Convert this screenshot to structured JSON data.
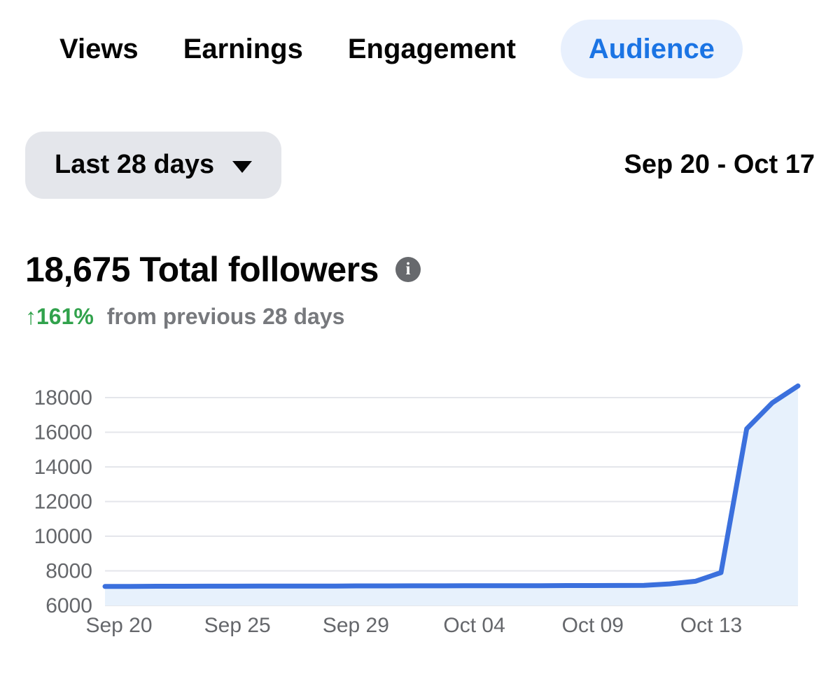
{
  "tabs": [
    {
      "label": "Views",
      "active": false
    },
    {
      "label": "Earnings",
      "active": false
    },
    {
      "label": "Engagement",
      "active": false
    },
    {
      "label": "Audience",
      "active": true
    }
  ],
  "filters": {
    "range_button_label": "Last 28 days",
    "range_dates": "Sep 20 - Oct 17"
  },
  "summary": {
    "title": "18,675 Total followers",
    "info_icon": "info-icon",
    "delta_arrow": "↑",
    "delta_value": "161%",
    "delta_rest": "from previous 28 days"
  },
  "colors": {
    "accent_blue": "#1b74e4",
    "tab_pill_bg": "#e8f0fd",
    "button_gray": "#e4e6eb",
    "positive_green": "#31a24c",
    "muted_text": "#77797d",
    "axis_text": "#65676b",
    "info_gray": "#67696d",
    "line_blue": "#3b70dd",
    "area_fill": "#e7f1fc",
    "grid_gray": "#e4e6eb",
    "text_black": "#050505"
  },
  "chart_data": {
    "type": "area",
    "x": [
      "Sep 20",
      "Sep 21",
      "Sep 22",
      "Sep 23",
      "Sep 24",
      "Sep 25",
      "Sep 26",
      "Sep 27",
      "Sep 28",
      "Sep 29",
      "Sep 30",
      "Oct 01",
      "Oct 02",
      "Oct 03",
      "Oct 04",
      "Oct 05",
      "Oct 06",
      "Oct 07",
      "Oct 08",
      "Oct 09",
      "Oct 10",
      "Oct 11",
      "Oct 12",
      "Oct 13",
      "Oct 14",
      "Oct 15",
      "Oct 16",
      "Oct 17"
    ],
    "values": [
      7100,
      7105,
      7110,
      7110,
      7115,
      7115,
      7120,
      7120,
      7125,
      7125,
      7130,
      7130,
      7135,
      7135,
      7140,
      7140,
      7145,
      7145,
      7150,
      7150,
      7155,
      7160,
      7250,
      7400,
      7900,
      16200,
      17700,
      18675
    ],
    "y_ticks": [
      6000,
      8000,
      10000,
      12000,
      14000,
      16000,
      18000
    ],
    "x_tick_labels": [
      "Sep 20",
      "Sep 25",
      "Sep 29",
      "Oct 04",
      "Oct 09",
      "Oct 13"
    ],
    "ylim": [
      6000,
      19000
    ],
    "grid": "horizontal",
    "legend": "none"
  }
}
